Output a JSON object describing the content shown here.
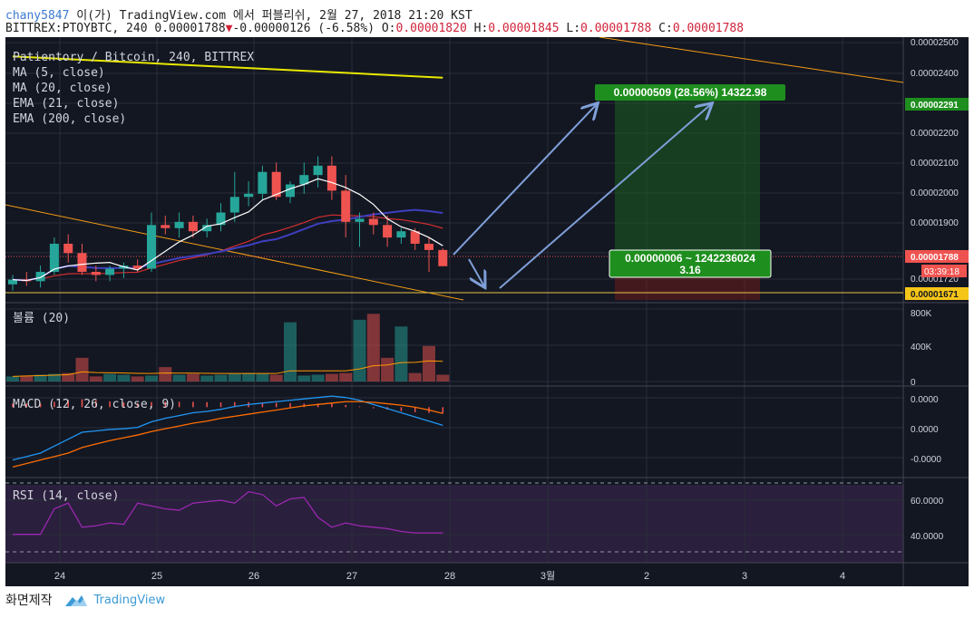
{
  "header": {
    "user": "chany5847",
    "published": "이(가) TradingView.com 에서 퍼블리쉬, 2월 27, 2018 21:20 KST",
    "symbol": "BITTREX:PTOYBTC, 240",
    "last": "0.00001788",
    "change_arrow": "▼",
    "change": "-0.00000126 (-6.58%)",
    "o_label": "O:",
    "o_value": "0.00001820",
    "h_label": "H:",
    "h_value": "0.00001845",
    "l_label": "L:",
    "l_value": "0.00001788",
    "c_label": "C:",
    "c_value": "0.00001788"
  },
  "legend": {
    "title": "Patientory / Bitcoin, 240, BITTREX",
    "ma5": "MA (5, close)",
    "ma20": "MA (20, close)",
    "ema21": "EMA (21, close)",
    "ema200": "EMA (200, close)"
  },
  "panes": {
    "volume": "볼륨 (20)",
    "macd": "MACD (12, 26, close, 9)",
    "rsi": "RSI (14, close)"
  },
  "annotations": {
    "target": "0.00000509 (28.56%) 14322.98",
    "stop_line1": "0.00000006 ~ 1242236024",
    "stop_line2": "3.16"
  },
  "price_axis": {
    "ticks": [
      "0.00002500",
      "0.00002400",
      "0.00002300",
      "0.00002200",
      "0.00002100",
      "0.00002000",
      "0.00001900",
      "0.00001800",
      "0.00001720"
    ],
    "badge_target": "0.00002291",
    "badge_last": "0.00001788",
    "badge_countdown": "03:39:18",
    "badge_support": "0.00001671"
  },
  "volume_axis": {
    "ticks": [
      "800K",
      "400K",
      "0"
    ]
  },
  "macd_axis": {
    "ticks": [
      "0.0000",
      "0.0000",
      "-0.0000"
    ]
  },
  "rsi_axis": {
    "ticks": [
      "60.0000",
      "40.0000"
    ]
  },
  "time_axis": {
    "ticks": [
      "24",
      "25",
      "26",
      "27",
      "28",
      "3월",
      "2",
      "3",
      "4"
    ]
  },
  "footer": {
    "label": "화면제작",
    "brand": "TradingView"
  },
  "colors": {
    "up": "#26a69a",
    "down": "#ef5350",
    "ma5": "#ffffff",
    "ma20": "#3f3fbf",
    "ema21": "#d32f2f",
    "ema200": "#e8e800",
    "trend": "#f39c12",
    "arrow": "#7f9fd8",
    "rsi": "#9c27b0",
    "macd": "#2196f3",
    "signal": "#ff6d00",
    "bg": "#131722"
  },
  "chart_data": {
    "type": "candlestick",
    "pair": "PTOY/BTC",
    "interval": "240",
    "candles": [
      {
        "o": 1730,
        "h": 1760,
        "l": 1710,
        "c": 1745
      },
      {
        "o": 1745,
        "h": 1770,
        "l": 1725,
        "c": 1740
      },
      {
        "o": 1740,
        "h": 1790,
        "l": 1720,
        "c": 1770
      },
      {
        "o": 1770,
        "h": 1880,
        "l": 1760,
        "c": 1860
      },
      {
        "o": 1860,
        "h": 1890,
        "l": 1800,
        "c": 1830
      },
      {
        "o": 1830,
        "h": 1860,
        "l": 1760,
        "c": 1770
      },
      {
        "o": 1770,
        "h": 1790,
        "l": 1740,
        "c": 1760
      },
      {
        "o": 1760,
        "h": 1790,
        "l": 1740,
        "c": 1780
      },
      {
        "o": 1780,
        "h": 1800,
        "l": 1750,
        "c": 1790
      },
      {
        "o": 1790,
        "h": 1810,
        "l": 1770,
        "c": 1780
      },
      {
        "o": 1780,
        "h": 1960,
        "l": 1770,
        "c": 1920
      },
      {
        "o": 1920,
        "h": 1950,
        "l": 1890,
        "c": 1910
      },
      {
        "o": 1910,
        "h": 1960,
        "l": 1880,
        "c": 1930
      },
      {
        "o": 1930,
        "h": 1950,
        "l": 1880,
        "c": 1900
      },
      {
        "o": 1900,
        "h": 1940,
        "l": 1880,
        "c": 1920
      },
      {
        "o": 1920,
        "h": 1990,
        "l": 1900,
        "c": 1960
      },
      {
        "o": 1960,
        "h": 2090,
        "l": 1930,
        "c": 2010
      },
      {
        "o": 2010,
        "h": 2060,
        "l": 1980,
        "c": 2020
      },
      {
        "o": 2020,
        "h": 2110,
        "l": 2000,
        "c": 2090
      },
      {
        "o": 2090,
        "h": 2120,
        "l": 2000,
        "c": 2010
      },
      {
        "o": 2010,
        "h": 2060,
        "l": 1990,
        "c": 2050
      },
      {
        "o": 2050,
        "h": 2120,
        "l": 2020,
        "c": 2080
      },
      {
        "o": 2080,
        "h": 2140,
        "l": 2040,
        "c": 2110
      },
      {
        "o": 2110,
        "h": 2140,
        "l": 2000,
        "c": 2030
      },
      {
        "o": 2030,
        "h": 2080,
        "l": 1880,
        "c": 1930
      },
      {
        "o": 1930,
        "h": 1960,
        "l": 1850,
        "c": 1940
      },
      {
        "o": 1940,
        "h": 1960,
        "l": 1890,
        "c": 1920
      },
      {
        "o": 1920,
        "h": 1950,
        "l": 1850,
        "c": 1880
      },
      {
        "o": 1880,
        "h": 1910,
        "l": 1860,
        "c": 1900
      },
      {
        "o": 1900,
        "h": 1910,
        "l": 1840,
        "c": 1860
      },
      {
        "o": 1860,
        "h": 1880,
        "l": 1770,
        "c": 1840
      },
      {
        "o": 1840,
        "h": 1845,
        "l": 1788,
        "c": 1788
      }
    ],
    "price_scale_1e8": true,
    "ylim": [
      1680,
      2510
    ],
    "volume": [
      60,
      70,
      80,
      90,
      100,
      280,
      60,
      90,
      80,
      60,
      70,
      170,
      80,
      90,
      70,
      80,
      90,
      100,
      90,
      80,
      700,
      70,
      80,
      90,
      100,
      730,
      800,
      280,
      650,
      100,
      420,
      80
    ],
    "volume_ylim": [
      0,
      900
    ],
    "rsi": [
      40,
      40,
      40,
      58,
      62,
      45,
      46,
      48,
      47,
      62,
      60,
      58,
      57,
      62,
      63,
      64,
      62,
      70,
      68,
      60,
      65,
      66,
      52,
      45,
      48,
      46,
      45,
      44,
      42,
      41,
      41,
      41
    ],
    "rsi_ylim": [
      20,
      80
    ],
    "macd": [
      -0.5,
      -0.45,
      -0.4,
      -0.3,
      -0.2,
      -0.1,
      -0.08,
      -0.06,
      -0.05,
      -0.03,
      0.05,
      0.1,
      0.14,
      0.18,
      0.2,
      0.23,
      0.27,
      0.3,
      0.32,
      0.34,
      0.36,
      0.38,
      0.4,
      0.42,
      0.4,
      0.36,
      0.3,
      0.24,
      0.18,
      0.12,
      0.06,
      0.0
    ],
    "signal": [
      -0.6,
      -0.55,
      -0.5,
      -0.45,
      -0.4,
      -0.32,
      -0.27,
      -0.22,
      -0.18,
      -0.14,
      -0.09,
      -0.05,
      -0.01,
      0.03,
      0.06,
      0.1,
      0.13,
      0.16,
      0.19,
      0.22,
      0.25,
      0.28,
      0.3,
      0.32,
      0.34,
      0.34,
      0.33,
      0.31,
      0.29,
      0.26,
      0.22,
      0.17
    ],
    "macd_ylim": [
      -0.7,
      0.5
    ]
  }
}
